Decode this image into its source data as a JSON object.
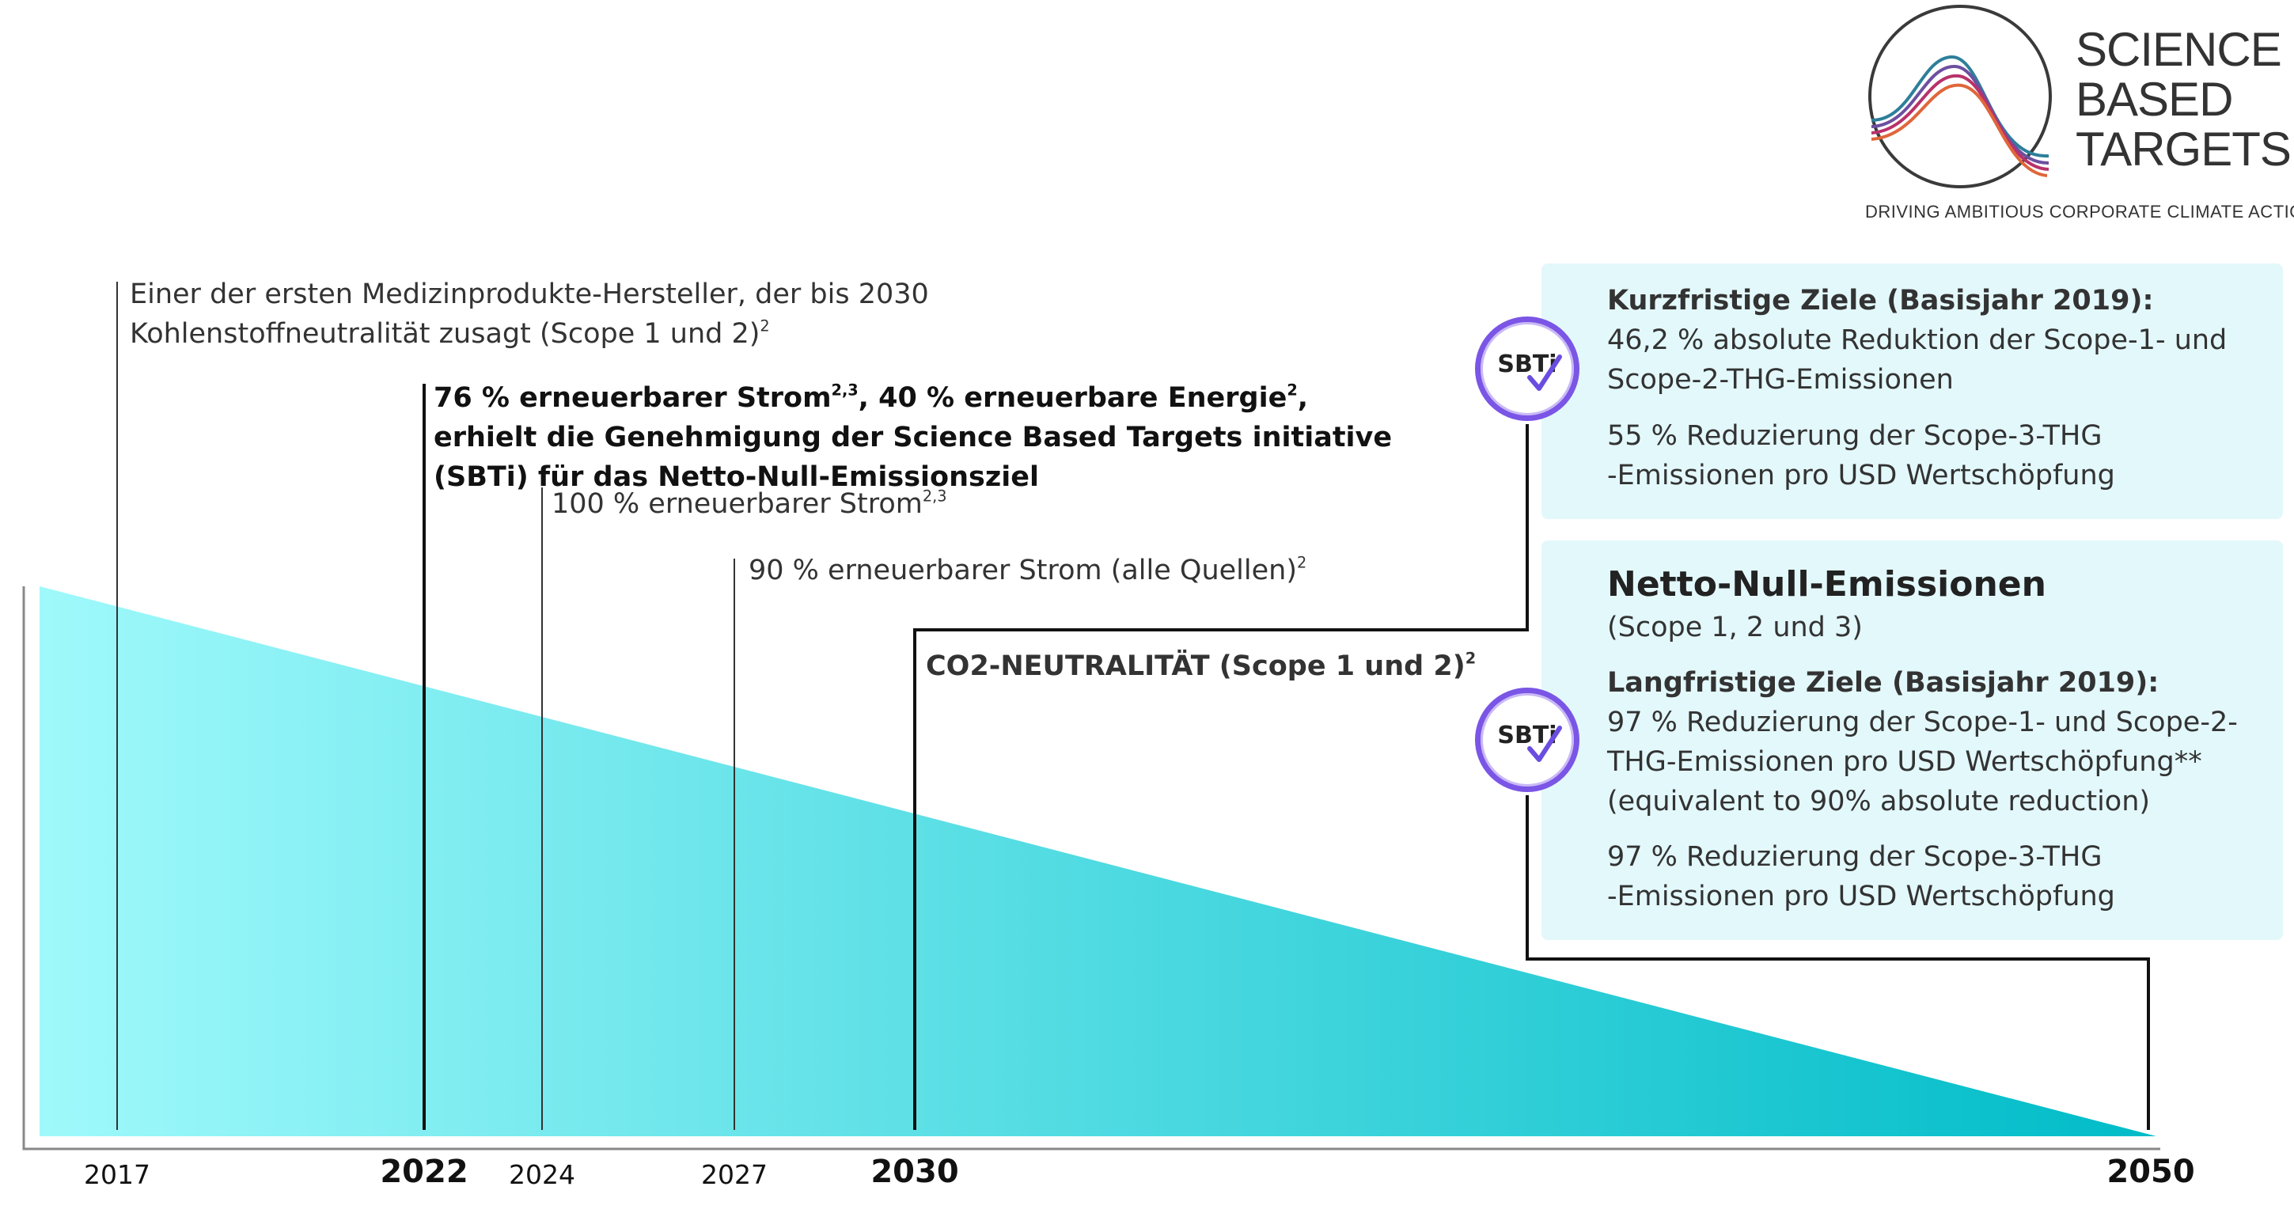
{
  "years": {
    "y2017": "2017",
    "y2022": "2022",
    "y2024": "2024",
    "y2027": "2027",
    "y2030": "2030",
    "y2050": "2050"
  },
  "milestones": {
    "m2017_line1": "Einer der ersten Medizinprodukte-Hersteller, der bis 2030",
    "m2017_line2": "Kohlenstoffneutralität zusagt (Scope 1 und 2)",
    "m2017_sup": "2",
    "m2022_line1a": "76 % erneuerbarer Strom",
    "m2022_sup1": "2,3",
    "m2022_line1b": ", 40 % erneuerbare Energie",
    "m2022_sup2": "2",
    "m2022_line1c": ",",
    "m2022_line2": "erhielt die Genehmigung der Science Based Targets initiative",
    "m2022_line3": "(SBTi) für das Netto-Null-Emissionsziel",
    "m2024_text": "100 % erneuerbarer Strom",
    "m2024_sup": "2,3",
    "m2027_text": "90 % erneuerbarer Strom (alle Quellen)",
    "m2027_sup": "2",
    "m2030_text": "CO2-NEUTRALITÄT (Scope 1 und 2)",
    "m2030_sup": "2"
  },
  "panel_short": {
    "title": "Kurzfristige Ziele (Basisjahr 2019):",
    "line1": "46,2 % absolute Reduktion der Scope-1- und",
    "line2": "Scope-2-THG-Emissionen",
    "line3": "55 % Reduzierung der Scope-3-THG",
    "line4": "-Emissionen pro USD Wertschöpfung"
  },
  "panel_long": {
    "heading": "Netto-Null-Emissionen",
    "subheading": "(Scope 1, 2 und 3)",
    "title": "Langfristige Ziele (Basisjahr 2019):",
    "line1": "97 % Reduzierung der Scope-1- und Scope-2-",
    "line2": "THG-Emissionen pro USD Wertschöpfung**",
    "line3": "(equivalent to 90% absolute reduction)",
    "line4": "97 % Reduzierung der Scope-3-THG",
    "line5": "-Emissionen pro USD Wertschöpfung"
  },
  "badges": {
    "label": "SBTi"
  },
  "logo": {
    "line1": "SCIENCE",
    "line2": "BASED",
    "line3": "TARGETS",
    "tagline": "DRIVING AMBITIOUS CORPORATE CLIMATE ACTION"
  },
  "colors": {
    "gradient_start": "#9ff9fb",
    "gradient_end": "#00bcc8",
    "panel_bg": "#e3f8fb",
    "badge_ring": "#7a55e6",
    "check": "#6a4de0"
  }
}
